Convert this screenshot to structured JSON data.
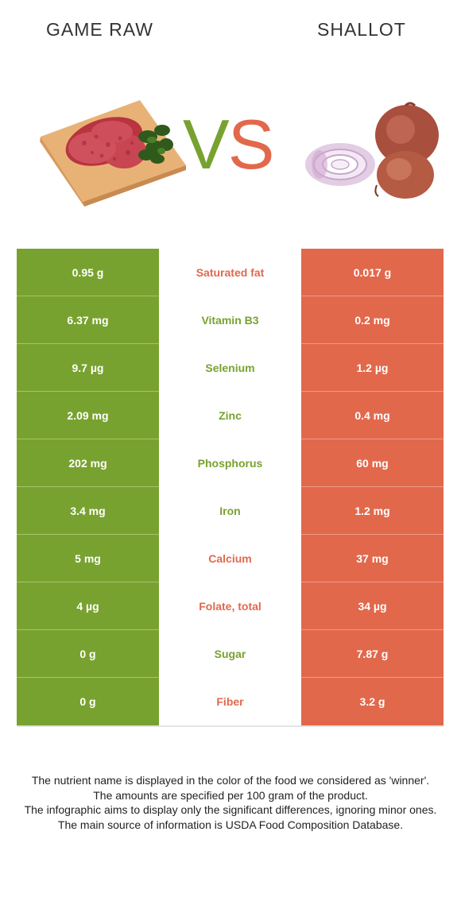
{
  "header": {
    "left_title": "GAME RAW",
    "right_title": "SHALLOT",
    "vs_v": "V",
    "vs_s": "S"
  },
  "colors": {
    "left_food": "#78a22f",
    "right_food": "#e2684c"
  },
  "table": {
    "rows": [
      {
        "left": "0.95 g",
        "nutrient": "Saturated fat",
        "right": "0.017 g",
        "winner": "right"
      },
      {
        "left": "6.37 mg",
        "nutrient": "Vitamin B3",
        "right": "0.2 mg",
        "winner": "left"
      },
      {
        "left": "9.7 µg",
        "nutrient": "Selenium",
        "right": "1.2 µg",
        "winner": "left"
      },
      {
        "left": "2.09 mg",
        "nutrient": "Zinc",
        "right": "0.4 mg",
        "winner": "left"
      },
      {
        "left": "202 mg",
        "nutrient": "Phosphorus",
        "right": "60 mg",
        "winner": "left"
      },
      {
        "left": "3.4 mg",
        "nutrient": "Iron",
        "right": "1.2 mg",
        "winner": "left"
      },
      {
        "left": "5 mg",
        "nutrient": "Calcium",
        "right": "37 mg",
        "winner": "right"
      },
      {
        "left": "4 µg",
        "nutrient": "Folate, total",
        "right": "34 µg",
        "winner": "right"
      },
      {
        "left": "0 g",
        "nutrient": "Sugar",
        "right": "7.87 g",
        "winner": "left"
      },
      {
        "left": "0 g",
        "nutrient": "Fiber",
        "right": "3.2 g",
        "winner": "right"
      }
    ]
  },
  "footer": {
    "line1": "The nutrient name is displayed in the color of the food we considered as 'winner'.",
    "line2": "The amounts are specified per 100 gram of the product.",
    "line3": "The infographic aims to display only the significant differences, ignoring minor ones.",
    "line4": "The main source of information is USDA Food Composition Database."
  }
}
